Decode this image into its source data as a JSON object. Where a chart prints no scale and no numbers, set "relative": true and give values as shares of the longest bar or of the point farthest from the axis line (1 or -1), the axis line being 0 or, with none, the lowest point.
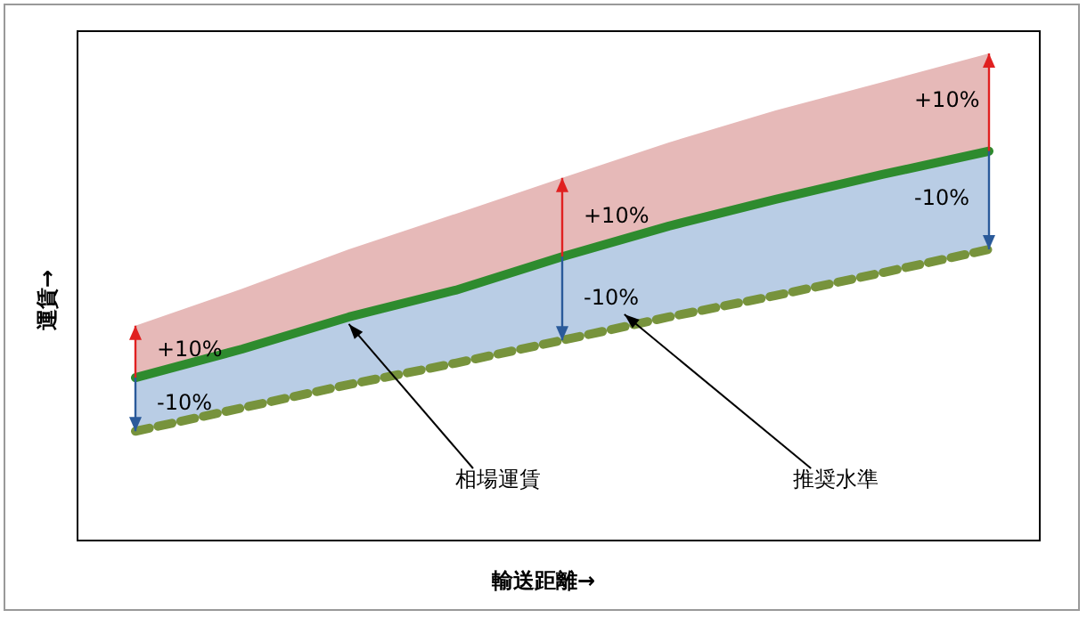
{
  "chart_data": {
    "type": "area",
    "relative": true,
    "xlabel": "輸送距離→",
    "ylabel": "運賃→",
    "categories": [
      null,
      null,
      null,
      null,
      null,
      null,
      null,
      null,
      null
    ],
    "series": [
      {
        "color": "#e6b9b8",
        "values": [
          0.44,
          0.516,
          0.597,
          0.67,
          0.744,
          0.817,
          0.883,
          0.941,
          1.0
        ]
      },
      {
        "color": "#b9cde5",
        "values": [
          0.333,
          0.392,
          0.458,
          0.513,
          0.582,
          0.645,
          0.7,
          0.751,
          0.799
        ]
      },
      {
        "type": "line",
        "color": "#2e8b2e",
        "values": [
          0.333,
          0.392,
          0.458,
          0.513,
          0.582,
          0.645,
          0.7,
          0.751,
          0.799
        ]
      },
      {
        "type": "line",
        "color": "#77933c",
        "line_style": "dashed",
        "values": [
          0.223,
          0.271,
          0.319,
          0.363,
          0.41,
          0.458,
          0.502,
          0.549,
          0.597
        ]
      }
    ],
    "annotations": [
      "+10%",
      "+10%",
      "+10%",
      "-10%",
      "-10%",
      "-10%",
      "相場運賃",
      "推奨水準"
    ],
    "legend": false
  }
}
